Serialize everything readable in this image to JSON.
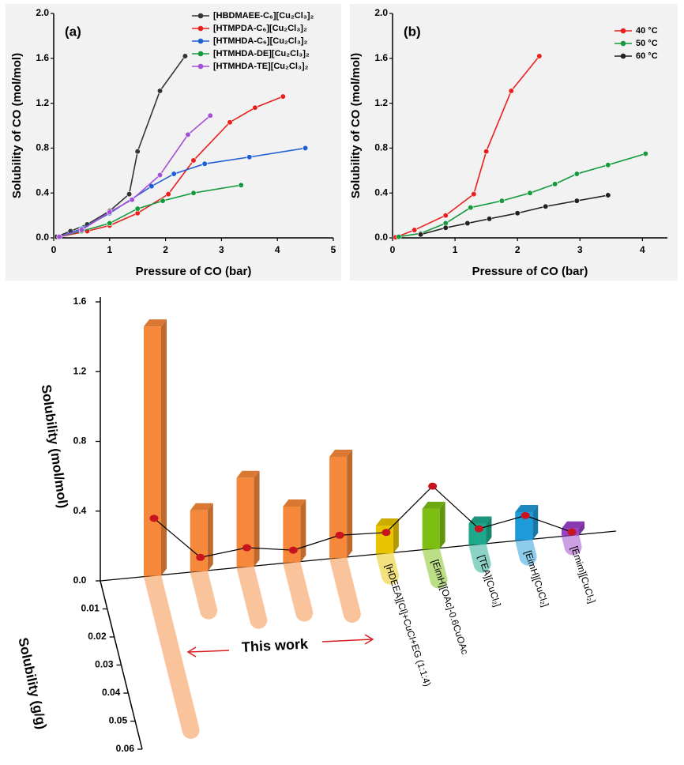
{
  "chart_data": [
    {
      "type": "line",
      "label": "(a)",
      "x_label": "Pressure of CO (bar)",
      "y_label": "Solubility of CO (mol/mol)",
      "xlim": [
        0,
        5
      ],
      "xticks": [
        0,
        1,
        2,
        3,
        4,
        5
      ],
      "ylim": [
        0,
        2
      ],
      "yticks": [
        {
          "value": 0,
          "label": "0.0"
        },
        0.4,
        0.8,
        1.2,
        1.6,
        {
          "value": 2,
          "label": "2.0"
        }
      ],
      "legend": "upper right",
      "series": [
        {
          "name": "[HBDMAEE-C₆][Cu₂Cl₃]₂",
          "color": "#333333",
          "x": [
            0.05,
            0.3,
            0.6,
            1.0,
            1.35,
            1.5,
            1.9,
            2.35
          ],
          "values": [
            0.01,
            0.06,
            0.12,
            0.24,
            0.39,
            0.77,
            1.31,
            1.62
          ]
        },
        {
          "name": "[HTMPDA-C₆][Cu₂Cl₃]₂",
          "color": "#e8201e",
          "x": [
            0.1,
            0.6,
            1.0,
            1.5,
            2.05,
            2.5,
            3.15,
            3.6,
            4.1
          ],
          "values": [
            0.01,
            0.06,
            0.11,
            0.22,
            0.39,
            0.69,
            1.03,
            1.16,
            1.26
          ]
        },
        {
          "name": "[HTMHDA-C₆][Cu₂Cl₃]₂",
          "color": "#1f5fd6",
          "x": [
            0.1,
            0.5,
            1.0,
            1.75,
            2.15,
            2.7,
            3.5,
            4.5
          ],
          "values": [
            0.01,
            0.08,
            0.22,
            0.46,
            0.57,
            0.66,
            0.72,
            0.8
          ]
        },
        {
          "name": "[HTMHDA-DE][Cu₂Cl₃]₂",
          "color": "#149a3c",
          "x": [
            0.1,
            0.5,
            1.0,
            1.5,
            1.95,
            2.5,
            3.35
          ],
          "values": [
            0.01,
            0.06,
            0.13,
            0.26,
            0.33,
            0.4,
            0.47
          ]
        },
        {
          "name": "[HTMHDA-TE][Cu₂Cl₃]₂",
          "color": "#a44fd6",
          "x": [
            0.1,
            0.5,
            1.0,
            1.4,
            1.9,
            2.4,
            2.8
          ],
          "values": [
            0.01,
            0.07,
            0.23,
            0.34,
            0.56,
            0.92,
            1.09
          ]
        }
      ]
    },
    {
      "type": "line",
      "label": "(b)",
      "x_label": "Pressure of CO (bar)",
      "y_label": "Solubility of CO (mol/mol)",
      "xlim": [
        0,
        4.4
      ],
      "xticks": [
        0,
        1,
        2,
        3,
        4
      ],
      "ylim": [
        0,
        2
      ],
      "yticks": [
        {
          "value": 0,
          "label": "0.0"
        },
        0.4,
        0.8,
        1.2,
        1.6,
        {
          "value": 2,
          "label": "2.0"
        }
      ],
      "legend": "upper right",
      "series": [
        {
          "name": "40 °C",
          "color": "#e8201e",
          "x": [
            0.05,
            0.35,
            0.85,
            1.3,
            1.5,
            1.9,
            2.35
          ],
          "values": [
            0.005,
            0.07,
            0.2,
            0.39,
            0.77,
            1.31,
            1.62
          ]
        },
        {
          "name": "50 °C",
          "color": "#149a3c",
          "x": [
            0.1,
            0.45,
            0.85,
            1.25,
            1.75,
            2.2,
            2.6,
            2.95,
            3.45,
            4.05
          ],
          "values": [
            0.01,
            0.04,
            0.13,
            0.27,
            0.33,
            0.4,
            0.48,
            0.57,
            0.65,
            0.75
          ]
        },
        {
          "name": "60 °C",
          "color": "#222222",
          "x": [
            0.45,
            0.85,
            1.2,
            1.55,
            2.0,
            2.45,
            2.95,
            3.45
          ],
          "values": [
            0.03,
            0.09,
            0.13,
            0.17,
            0.22,
            0.28,
            0.33,
            0.38
          ]
        }
      ]
    },
    {
      "type": "bar3d",
      "y_label": "Solubility (mol/mol)",
      "z_label": "Solubility (g/g)",
      "annotation": "This work",
      "categories": [
        null,
        null,
        null,
        null,
        null,
        "[HDEEA][Cl]+CuCl+EG (1:1:4)",
        "[EimH][OAc]-0.6CuOAc",
        "[TEA][CuCl₂]",
        "[EimH][CuCl₂]",
        "[Emim][CuCl₂]"
      ],
      "colors": [
        "#f5883a",
        "#f5883a",
        "#f5883a",
        "#f5883a",
        "#f5883a",
        "#e8c400",
        "#7cbf12",
        "#1ea98c",
        "#1e9ad8",
        "#9a42c6"
      ],
      "values": [
        1.43,
        0.35,
        0.51,
        0.32,
        0.58,
        0.16,
        0.23,
        0.12,
        0.16,
        0.04
      ],
      "line_values": [
        0.33,
        0.08,
        0.11,
        0.07,
        0.13,
        0.12,
        0.36,
        0.09,
        0.14,
        0.02
      ],
      "depth_values": [
        0.055,
        0.014,
        0.019,
        0.018,
        0.02,
        0.008,
        0.011,
        0.007,
        0.006,
        0.004
      ],
      "ylim": [
        0,
        1.6
      ],
      "yticks": [
        {
          "value": 0,
          "label": "0.0"
        },
        0.4,
        0.8,
        1.2,
        1.6
      ],
      "zlim": [
        0,
        0.06
      ],
      "zticks": [
        0.01,
        0.02,
        0.03,
        0.04,
        0.05,
        0.06
      ],
      "line_color": "#000000",
      "dot_color": "#c8141e"
    }
  ]
}
